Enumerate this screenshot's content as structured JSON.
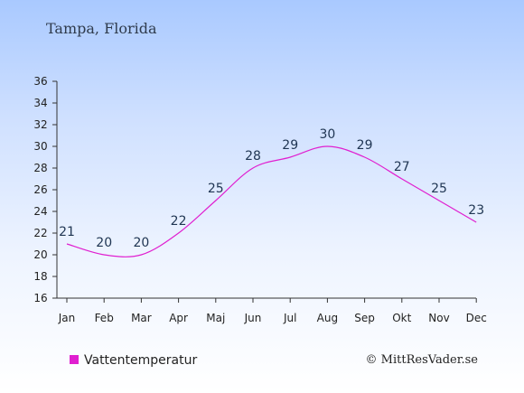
{
  "chart_data": {
    "type": "line",
    "title": "Tampa, Florida",
    "categories": [
      "Jan",
      "Feb",
      "Mar",
      "Apr",
      "Maj",
      "Jun",
      "Jul",
      "Aug",
      "Sep",
      "Okt",
      "Nov",
      "Dec"
    ],
    "series": [
      {
        "name": "Vattentemperatur",
        "values": [
          21,
          20,
          20,
          22,
          25,
          28,
          29,
          30,
          29,
          27,
          25,
          23
        ],
        "color": "#e01fd0"
      }
    ],
    "ylim": [
      16,
      36
    ],
    "yticks": [
      16,
      18,
      20,
      22,
      24,
      26,
      28,
      30,
      32,
      34,
      36
    ],
    "grid": false,
    "legend": "bottom-left",
    "credit": "© MittResVader.se"
  }
}
